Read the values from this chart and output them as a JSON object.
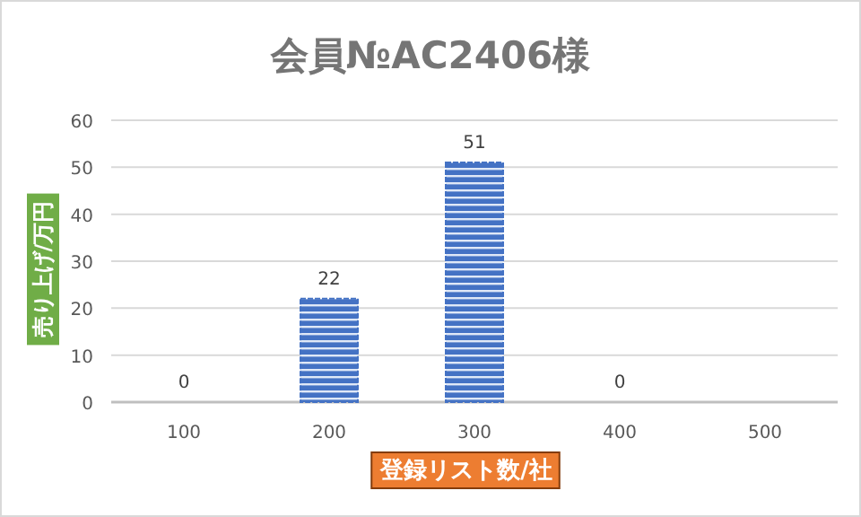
{
  "chart_data": {
    "type": "bar",
    "title": "会員№AC2406様",
    "xlabel": "登録リスト数/社",
    "ylabel": "売り上げ/万円",
    "categories": [
      "100",
      "200",
      "300",
      "400",
      "500"
    ],
    "values": [
      0,
      22,
      51,
      0,
      null
    ],
    "color": "#4472c4",
    "ylim": [
      0,
      60
    ],
    "yticks": [
      0,
      10,
      20,
      30,
      40,
      50,
      60
    ],
    "grid": "y",
    "data_labels": true
  }
}
